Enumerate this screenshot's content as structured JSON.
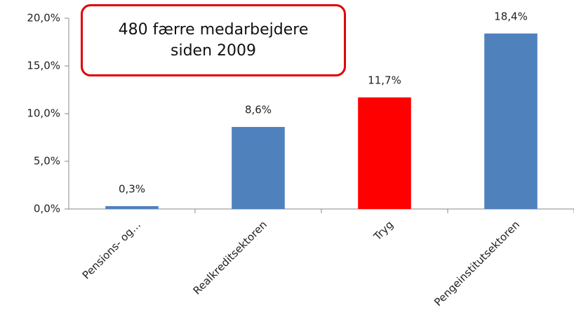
{
  "chart_data": {
    "type": "bar",
    "annotation": "480 færre medarbejdere siden 2009",
    "categories": [
      "Pensions- og…",
      "Realkreditsektoren",
      "Tryg",
      "Pengeinstitutsektoren"
    ],
    "values": [
      0.3,
      8.6,
      11.7,
      18.4
    ],
    "value_labels": [
      "0,3%",
      "8,6%",
      "11,7%",
      "18,4%"
    ],
    "colors": [
      "#4f81bd",
      "#4f81bd",
      "#ff0000",
      "#4f81bd"
    ],
    "ylim": [
      0,
      20
    ],
    "yticks": [
      {
        "value": 0,
        "label": "0,0%"
      },
      {
        "value": 5,
        "label": "5,0%"
      },
      {
        "value": 10,
        "label": "10,0%"
      },
      {
        "value": 15,
        "label": "15,0%"
      },
      {
        "value": 20,
        "label": "20,0%"
      }
    ],
    "grid": false
  }
}
